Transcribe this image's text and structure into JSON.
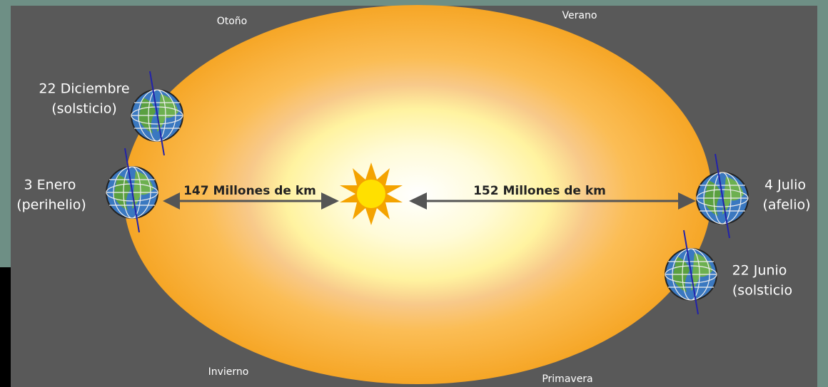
{
  "seasons": {
    "top_left": "Otoño",
    "top_right": "Verano",
    "bottom_left": "Invierno",
    "bottom_right": "Primavera"
  },
  "positions": [
    {
      "date": "22 Diciembre",
      "note": "(solsticio)"
    },
    {
      "date": "3 Enero",
      "note": "(perihelio)"
    },
    {
      "date": "4 Julio",
      "note": "(afelio)"
    },
    {
      "date": "22 Junio",
      "note": "(solsticio"
    }
  ],
  "distances": {
    "perihelion": "147 Millones de km",
    "aphelion": "152 Millones de km"
  }
}
